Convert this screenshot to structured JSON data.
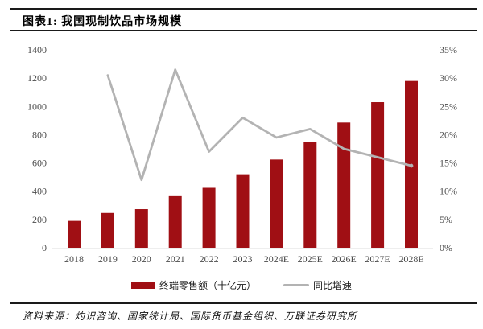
{
  "header": {
    "title": "图表1: 我国现制饮品市场规模"
  },
  "footer": {
    "source": "资料来源：灼识咨询、国家统计局、国际货币基金组织、万联证券研究所"
  },
  "chart_data": {
    "type": "bar+line",
    "title": "我国现制饮品市场规模",
    "categories": [
      "2018",
      "2019",
      "2020",
      "2021",
      "2022",
      "2023",
      "2024E",
      "2025E",
      "2026E",
      "2027E",
      "2028E"
    ],
    "series": [
      {
        "name": "终端零售额（十亿元）",
        "type": "bar",
        "axis": "left",
        "color": "#a00f14",
        "values": [
          190,
          246,
          273,
          365,
          424,
          520,
          624,
          750,
          886,
          1030,
          1180
        ]
      },
      {
        "name": "同比增速",
        "type": "line",
        "axis": "right",
        "color": "#b3b3b3",
        "values": [
          null,
          30.5,
          12,
          31.5,
          17,
          23,
          19.5,
          21,
          17.5,
          16,
          14.5
        ]
      }
    ],
    "left_axis": {
      "min": 0,
      "max": 1400,
      "step": 200,
      "suffix": ""
    },
    "right_axis": {
      "min": 0,
      "max": 35,
      "step": 5,
      "suffix": "%"
    },
    "grid": false,
    "legend_position": "bottom",
    "axis_text_color": "#4a4a4a",
    "axis_line_color": "#dddddd"
  }
}
